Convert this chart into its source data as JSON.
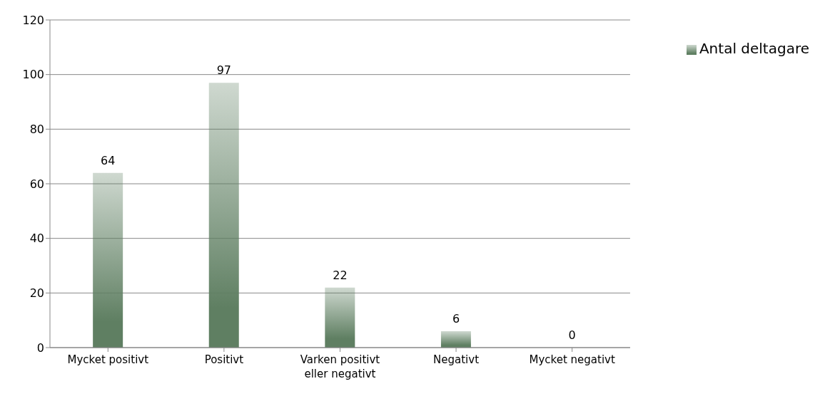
{
  "chart_data": {
    "type": "bar",
    "categories": [
      "Mycket positivt",
      "Positivt",
      "Varken positivt eller negativt",
      "Negativt",
      "Mycket negativt"
    ],
    "series": [
      {
        "name": "Antal deltagare",
        "color": "#5f7f62",
        "values": [
          64,
          97,
          22,
          6,
          0
        ]
      }
    ],
    "ylim": [
      0,
      120
    ],
    "yticks": [
      0,
      20,
      40,
      60,
      80,
      100,
      120
    ],
    "grid": "y",
    "legend": "top right",
    "data_labels": true
  }
}
